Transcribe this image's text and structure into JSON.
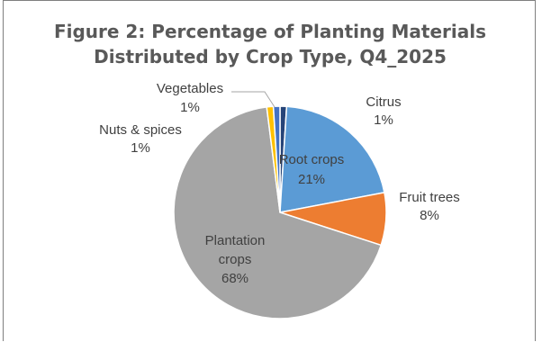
{
  "chart_data": {
    "type": "pie",
    "title": "Figure 2: Percentage of Planting Materials Distributed by Crop Type, Q4_2025",
    "title_lines": [
      "Figure 2: Percentage of Planting Materials",
      "Distributed by Crop Type, Q4_2025"
    ],
    "start_angle_deg": 0,
    "direction": "clockwise",
    "slices": [
      {
        "name": "Citrus",
        "value": 1,
        "label": "1%",
        "color": "#264478"
      },
      {
        "name": "Root crops",
        "value": 21,
        "label": "21%",
        "color": "#5b9bd5"
      },
      {
        "name": "Fruit trees",
        "value": 8,
        "label": "8%",
        "color": "#ed7d31"
      },
      {
        "name": "Plantation crops",
        "value": 68,
        "label": "68%",
        "color": "#a5a5a5"
      },
      {
        "name": "Nuts & spices",
        "value": 1,
        "label": "1%",
        "color": "#ffc000"
      },
      {
        "name": "Vegetables",
        "value": 1,
        "label": "1%",
        "color": "#4472c4"
      }
    ],
    "legend": "none",
    "label_position": "outside-with-leaders"
  }
}
